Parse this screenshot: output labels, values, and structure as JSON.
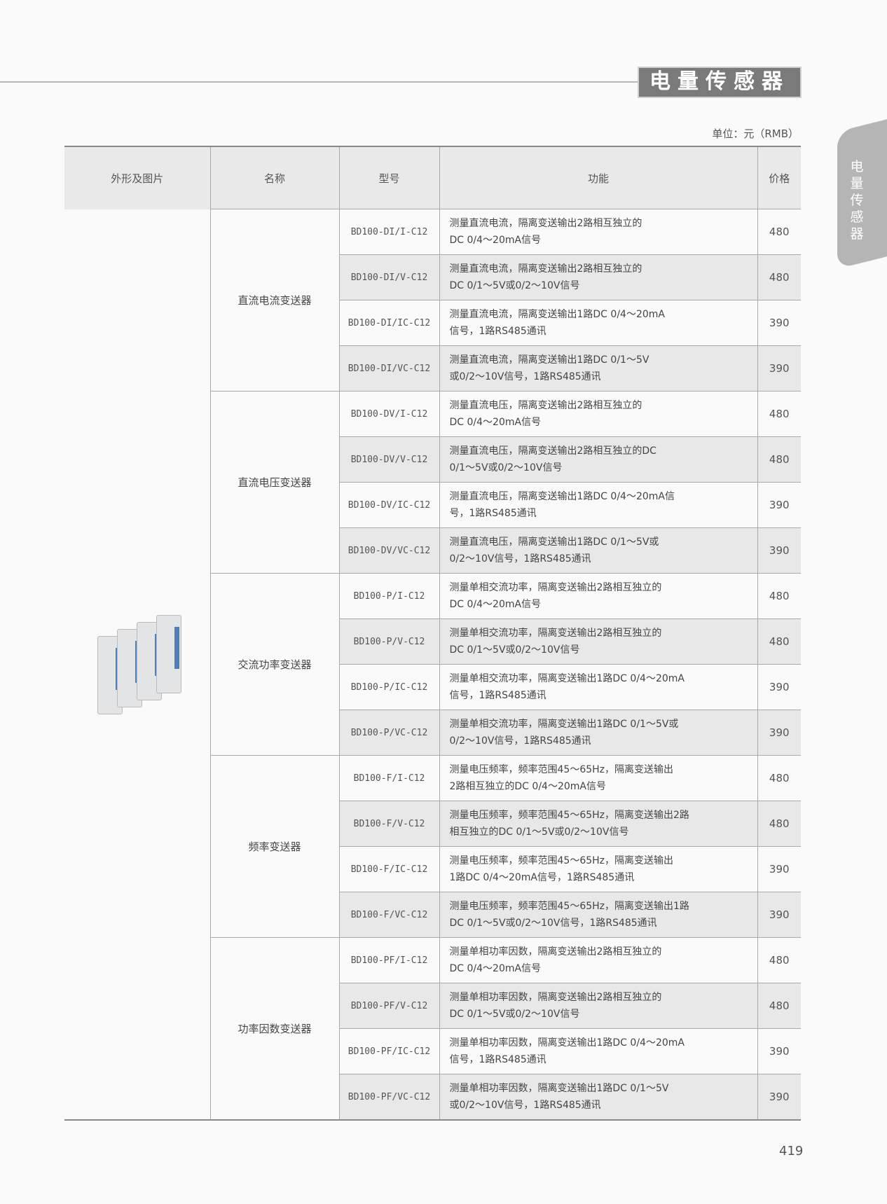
{
  "header": {
    "title": "电量传感器",
    "unit": "单位：元（RMB）"
  },
  "side_tab": {
    "label": "电量传感器"
  },
  "table": {
    "columns": [
      "外形及图片",
      "名称",
      "型号",
      "功能",
      "价格"
    ],
    "groups": [
      {
        "name": "直流电流变送器",
        "rows": [
          {
            "model": "BD100-DI/I-C12",
            "func": [
              "测量直流电流，隔离变送输出2路相互独立的",
              "DC 0/4～20mA信号"
            ],
            "price": "480"
          },
          {
            "model": "BD100-DI/V-C12",
            "func": [
              "测量直流电流，隔离变送输出2路相互独立的",
              "DC 0/1～5V或0/2～10V信号"
            ],
            "price": "480"
          },
          {
            "model": "BD100-DI/IC-C12",
            "func": [
              "测量直流电流，隔离变送输出1路DC 0/4～20mA",
              "信号，1路RS485通讯"
            ],
            "price": "390"
          },
          {
            "model": "BD100-DI/VC-C12",
            "func": [
              "测量直流电流，隔离变送输出1路DC 0/1～5V",
              "或0/2～10V信号，1路RS485通讯"
            ],
            "price": "390"
          }
        ]
      },
      {
        "name": "直流电压变送器",
        "rows": [
          {
            "model": "BD100-DV/I-C12",
            "func": [
              "测量直流电压，隔离变送输出2路相互独立的",
              "DC 0/4～20mA信号"
            ],
            "price": "480"
          },
          {
            "model": "BD100-DV/V-C12",
            "func": [
              "测量直流电压，隔离变送输出2路相互独立的DC",
              "0/1～5V或0/2～10V信号"
            ],
            "price": "480"
          },
          {
            "model": "BD100-DV/IC-C12",
            "func": [
              "测量直流电压，隔离变送输出1路DC 0/4～20mA信",
              "号，1路RS485通讯"
            ],
            "price": "390"
          },
          {
            "model": "BD100-DV/VC-C12",
            "func": [
              "测量直流电压，隔离变送输出1路DC 0/1～5V或",
              "0/2～10V信号，1路RS485通讯"
            ],
            "price": "390"
          }
        ]
      },
      {
        "name": "交流功率变送器",
        "rows": [
          {
            "model": "BD100-P/I-C12",
            "func": [
              "测量单相交流功率，隔离变送输出2路相互独立的",
              "DC 0/4～20mA信号"
            ],
            "price": "480"
          },
          {
            "model": "BD100-P/V-C12",
            "func": [
              "测量单相交流功率，隔离变送输出2路相互独立的",
              "DC 0/1～5V或0/2～10V信号"
            ],
            "price": "480"
          },
          {
            "model": "BD100-P/IC-C12",
            "func": [
              "测量单相交流功率，隔离变送输出1路DC 0/4～20mA",
              "信号，1路RS485通讯"
            ],
            "price": "390"
          },
          {
            "model": "BD100-P/VC-C12",
            "func": [
              "测量单相交流功率，隔离变送输出1路DC 0/1～5V或",
              "0/2～10V信号，1路RS485通讯"
            ],
            "price": "390"
          }
        ]
      },
      {
        "name": "频率变送器",
        "rows": [
          {
            "model": "BD100-F/I-C12",
            "func": [
              "测量电压频率，频率范围45～65Hz，隔离变送输出",
              "2路相互独立的DC 0/4～20mA信号"
            ],
            "price": "480"
          },
          {
            "model": "BD100-F/V-C12",
            "func": [
              "测量电压频率，频率范围45～65Hz，隔离变送输出2路",
              "相互独立的DC 0/1～5V或0/2～10V信号"
            ],
            "price": "480"
          },
          {
            "model": "BD100-F/IC-C12",
            "func": [
              "测量电压频率，频率范围45～65Hz，隔离变送输出",
              "1路DC 0/4～20mA信号，1路RS485通讯"
            ],
            "price": "390"
          },
          {
            "model": "BD100-F/VC-C12",
            "func": [
              "测量电压频率，频率范围45～65Hz，隔离变送输出1路",
              "DC 0/1～5V或0/2～10V信号，1路RS485通讯"
            ],
            "price": "390"
          }
        ]
      },
      {
        "name": "功率因数变送器",
        "rows": [
          {
            "model": "BD100-PF/I-C12",
            "func": [
              "测量单相功率因数，隔离变送输出2路相互独立的",
              "DC 0/4～20mA信号"
            ],
            "price": "480"
          },
          {
            "model": "BD100-PF/V-C12",
            "func": [
              "测量单相功率因数，隔离变送输出2路相互独立的",
              "DC 0/1～5V或0/2～10V信号"
            ],
            "price": "480"
          },
          {
            "model": "BD100-PF/IC-C12",
            "func": [
              "测量单相功率因数，隔离变送输出1路DC 0/4～20mA",
              "信号，1路RS485通讯"
            ],
            "price": "390"
          },
          {
            "model": "BD100-PF/VC-C12",
            "func": [
              "测量单相功率因数，隔离变送输出1路DC 0/1～5V",
              "或0/2～10V信号，1路RS485通讯"
            ],
            "price": "390"
          }
        ]
      }
    ]
  },
  "page_number": "419"
}
